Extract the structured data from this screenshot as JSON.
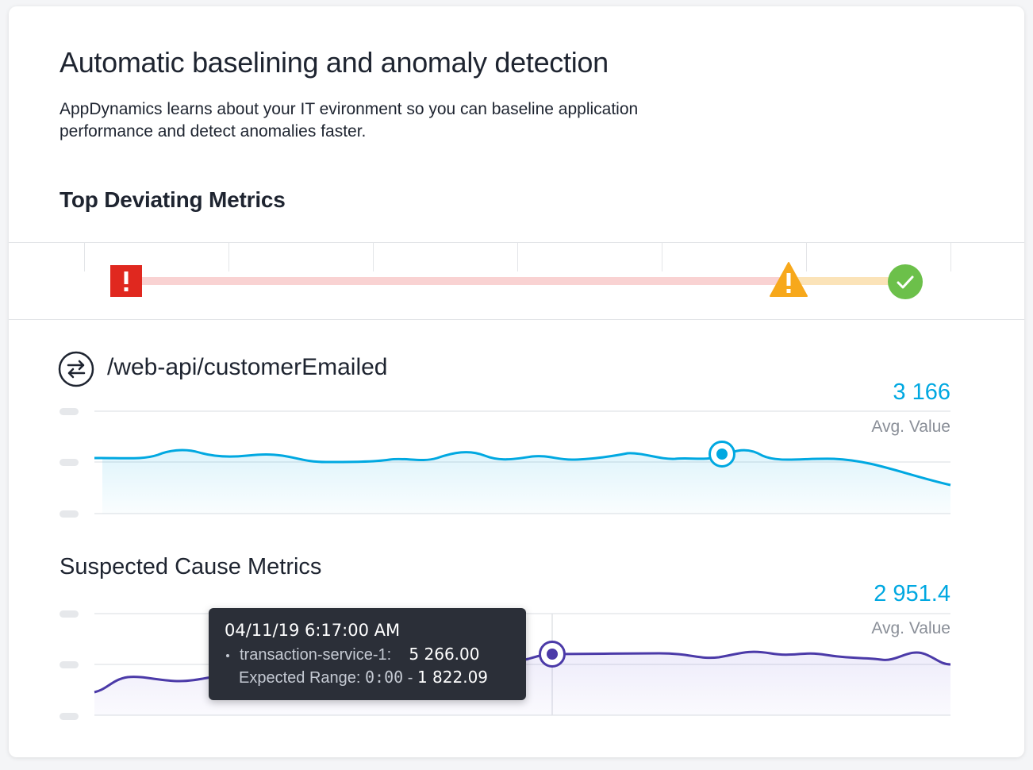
{
  "header": {
    "title": "Automatic baselining and anomaly detection",
    "description": "AppDynamics learns about your IT evironment so you can baseline application performance and detect anomalies faster."
  },
  "top_section": {
    "title": "Top Deviating Metrics"
  },
  "status_bar": {
    "icons": [
      "error-icon",
      "warning-icon",
      "check-icon"
    ],
    "colors": {
      "error": "#e0281f",
      "warning": "#f7a81b",
      "ok": "#6cc04a",
      "red_track": "#f9d2d2",
      "yellow_track": "#fbe3b8"
    }
  },
  "metric": {
    "name": "/web-api/customerEmailed",
    "icon": "transfer-arrows-icon",
    "avg_value": "3 166",
    "avg_label": "Avg. Value",
    "line_color": "#00a8e1"
  },
  "cause": {
    "title": "Suspected Cause Metrics",
    "avg_value": "2 951.4",
    "avg_label": "Avg. Value",
    "line_color": "#4b3aa8"
  },
  "tooltip": {
    "date": "04/11/19 6:17:00 AM",
    "series_label": "transaction-service-1:",
    "series_value": "5 266.00",
    "range_label": "Expected Range:",
    "range_low": "0:00",
    "range_sep": "-",
    "range_high": "1 822.09"
  },
  "colors": {
    "accent": "#00a8e1",
    "purple": "#4b3aa8",
    "tooltip_bg": "#2b2f38"
  }
}
